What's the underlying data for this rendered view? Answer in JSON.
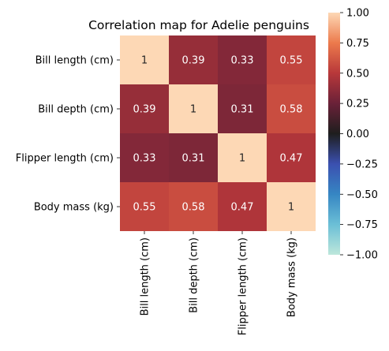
{
  "chart_data": {
    "type": "heatmap",
    "title": "Correlation map for Adelie penguins",
    "row_labels": [
      "Bill length (cm)",
      "Bill depth (cm)",
      "Flipper length (cm)",
      "Body mass (kg)"
    ],
    "col_labels": [
      "Bill length (cm)",
      "Bill depth (cm)",
      "Flipper length (cm)",
      "Body mass (kg)"
    ],
    "values": [
      [
        1,
        0.39,
        0.33,
        0.55
      ],
      [
        0.39,
        1,
        0.31,
        0.58
      ],
      [
        0.33,
        0.31,
        1,
        0.47
      ],
      [
        0.55,
        0.58,
        0.47,
        1
      ]
    ],
    "value_labels": [
      [
        "1",
        "0.39",
        "0.33",
        "0.55"
      ],
      [
        "0.39",
        "1",
        "0.31",
        "0.58"
      ],
      [
        "0.33",
        "0.31",
        "1",
        "0.47"
      ],
      [
        "0.55",
        "0.58",
        "0.47",
        "1"
      ]
    ],
    "colorbar": {
      "range": [
        -1,
        1
      ],
      "colormap": "icefire",
      "ticks": [
        "1.00",
        "0.75",
        "0.50",
        "0.25",
        "0.00",
        "−0.25",
        "−0.50",
        "−0.75",
        "−1.00"
      ],
      "tick_values": [
        1,
        0.75,
        0.5,
        0.25,
        0,
        -0.25,
        -0.5,
        -0.75,
        -1
      ]
    }
  }
}
